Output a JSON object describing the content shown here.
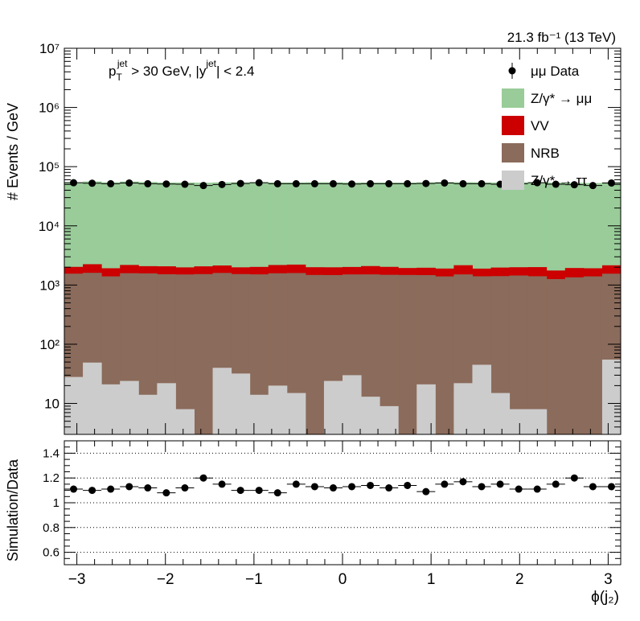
{
  "lumi_label": "21.3 fb⁻¹ (13 TeV)",
  "cut_label": "p_T^jet > 30 GeV,  |y^jet| < 2.4",
  "cut_label_parts": {
    "pt_base": "p",
    "pt_sub": "T",
    "pt_sup": "jet",
    "pt_rest": " > 30 GeV,  |y",
    "y_sup": "jet",
    "y_rest": "| < 2.4"
  },
  "chart_data": [
    {
      "type": "bar",
      "stacked": true,
      "log_y": true,
      "ylabel": "# Events / GeV",
      "ylim": [
        3,
        10000000
      ],
      "xlim": [
        -3.1416,
        3.1416
      ],
      "y_ticks": [
        {
          "v": 10,
          "label": "10"
        },
        {
          "v": 100,
          "label": "10²"
        },
        {
          "v": 1000,
          "label": "10³"
        },
        {
          "v": 10000,
          "label": "10⁴"
        },
        {
          "v": 100000,
          "label": "10⁵"
        },
        {
          "v": 1000000,
          "label": "10⁶"
        },
        {
          "v": 10000000,
          "label": "10⁷"
        }
      ],
      "x_bin_edges": [
        -3.1416,
        -2.9322,
        -2.7227,
        -2.5133,
        -2.3038,
        -2.0944,
        -1.885,
        -1.6755,
        -1.4661,
        -1.2566,
        -1.0472,
        -0.8378,
        -0.6283,
        -0.4189,
        -0.2094,
        0,
        0.2094,
        0.4189,
        0.6283,
        0.8378,
        1.0472,
        1.2566,
        1.4661,
        1.6755,
        1.885,
        2.0944,
        2.3038,
        2.5133,
        2.7227,
        2.9322,
        3.1416
      ],
      "legend_position": "top-right",
      "series": [
        {
          "name": "Z/γ* → ττ",
          "color": "#cccccc",
          "values": [
            28,
            49,
            21,
            24,
            14,
            22,
            8,
            0,
            40,
            32,
            14,
            20,
            15,
            0,
            24,
            30,
            13,
            9,
            0,
            21,
            0,
            22,
            45,
            15,
            8,
            8,
            0,
            0,
            0,
            55
          ]
        },
        {
          "name": "NRB",
          "color": "#8b6b5b",
          "values": [
            1530,
            1560,
            1380,
            1560,
            1560,
            1500,
            1500,
            1530,
            1560,
            1500,
            1500,
            1560,
            1580,
            1480,
            1450,
            1480,
            1500,
            1480,
            1480,
            1450,
            1400,
            1490,
            1360,
            1400,
            1440,
            1400,
            1260,
            1350,
            1400,
            1500
          ]
        },
        {
          "name": "VV",
          "color": "#cc0000",
          "values": [
            470,
            640,
            520,
            600,
            510,
            550,
            480,
            540,
            540,
            460,
            510,
            600,
            620,
            520,
            520,
            510,
            580,
            540,
            460,
            490,
            500,
            650,
            490,
            560,
            550,
            600,
            500,
            590,
            520,
            600
          ]
        },
        {
          "name": "Z/γ* → μμ",
          "color": "#99cc99",
          "values": [
            52000,
            54000,
            52500,
            54000,
            53000,
            52000,
            52000,
            51500,
            52000,
            52500,
            52500,
            52000,
            52000,
            52500,
            52500,
            52000,
            52000,
            52000,
            52000,
            52500,
            53000,
            52500,
            52500,
            52000,
            52500,
            52000,
            52000,
            51500,
            51000,
            52000
          ]
        }
      ],
      "data": {
        "name": "μμ Data",
        "values": [
          53500,
          52500,
          51500,
          53000,
          51500,
          51000,
          50500,
          48000,
          50000,
          52000,
          53500,
          51500,
          51500,
          51500,
          51500,
          51000,
          51500,
          51500,
          51500,
          52000,
          53000,
          51500,
          51500,
          50500,
          51500,
          53500,
          50500,
          49500,
          48000,
          53000
        ]
      }
    },
    {
      "type": "scatter",
      "xlabel": "ϕ(j₂)",
      "ylabel": "Simulation/Data",
      "ylim": [
        0.5,
        1.5
      ],
      "xlim": [
        -3.1416,
        3.1416
      ],
      "grid_y": [
        0.6,
        0.8,
        1,
        1.2,
        1.4
      ],
      "y_ticks": [
        {
          "v": 0.6,
          "label": "0.6"
        },
        {
          "v": 0.8,
          "label": "0.8"
        },
        {
          "v": 1,
          "label": "1"
        },
        {
          "v": 1.2,
          "label": "1.2"
        },
        {
          "v": 1.4,
          "label": "1.4"
        }
      ],
      "x_ticks": [
        {
          "v": -3,
          "label": "−3"
        },
        {
          "v": -2,
          "label": "−2"
        },
        {
          "v": -1,
          "label": "−1"
        },
        {
          "v": 0,
          "label": "0"
        },
        {
          "v": 1,
          "label": "1"
        },
        {
          "v": 2,
          "label": "2"
        },
        {
          "v": 3,
          "label": "3"
        }
      ],
      "values": [
        1.11,
        1.1,
        1.11,
        1.13,
        1.12,
        1.08,
        1.12,
        1.2,
        1.15,
        1.1,
        1.1,
        1.08,
        1.15,
        1.13,
        1.12,
        1.13,
        1.14,
        1.12,
        1.14,
        1.09,
        1.15,
        1.17,
        1.13,
        1.15,
        1.11,
        1.11,
        1.15,
        1.2,
        1.13,
        1.13
      ]
    }
  ]
}
